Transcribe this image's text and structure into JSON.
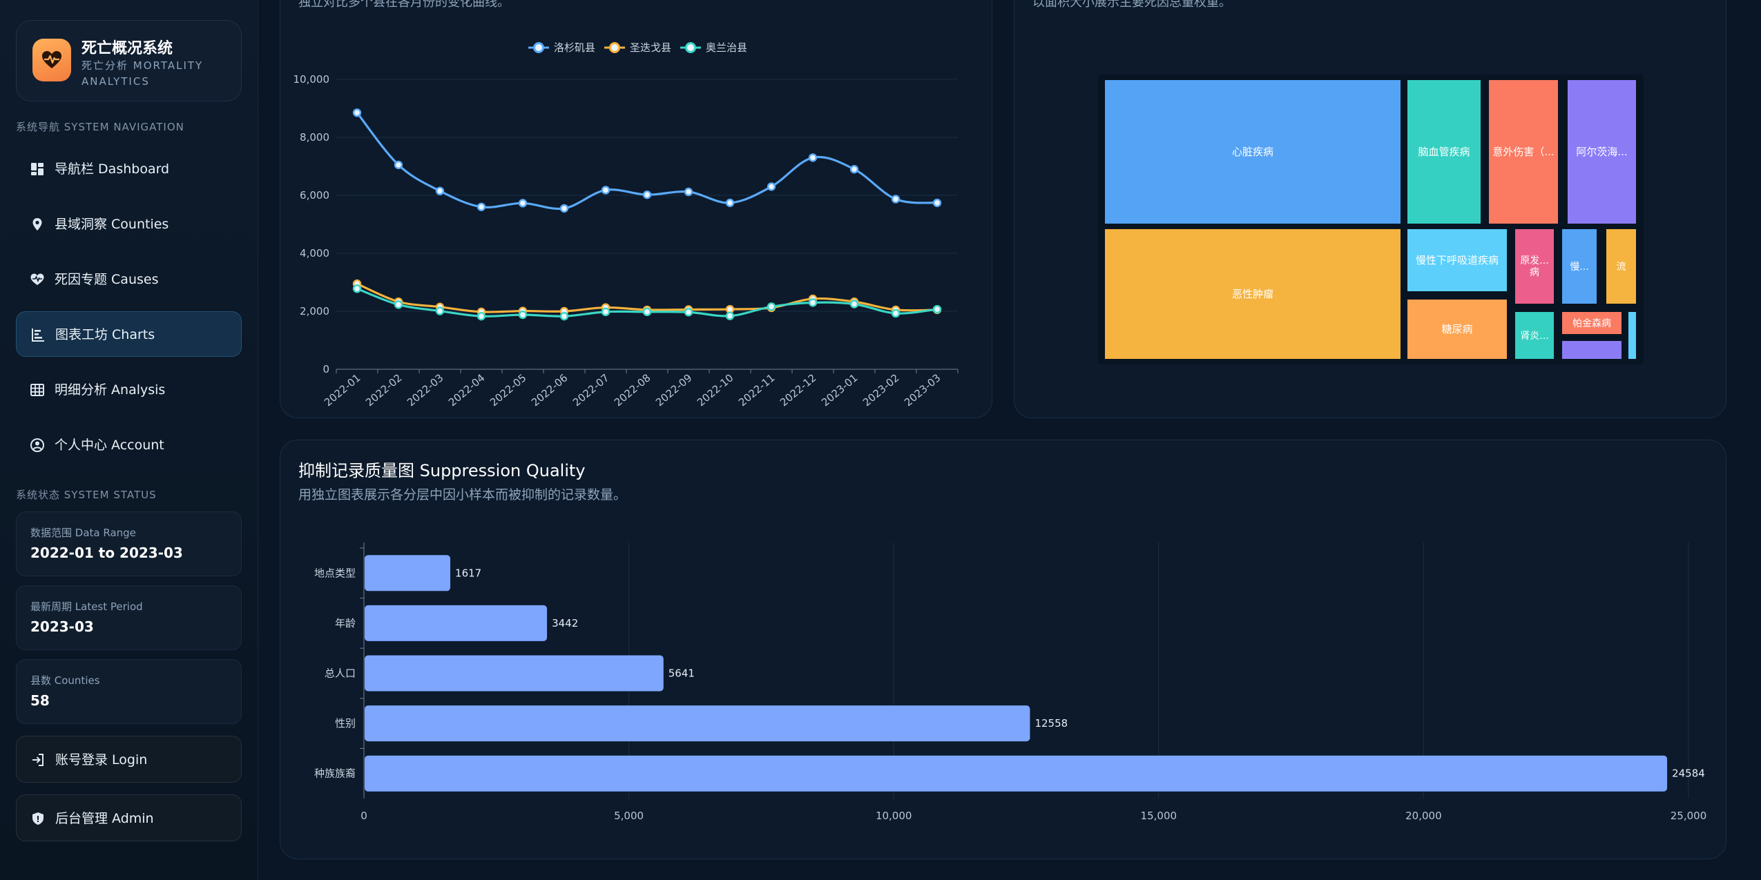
{
  "brand": {
    "title": "死亡概况系统",
    "subtitle": "死亡分析 MORTALITY ANALYTICS"
  },
  "nav": {
    "section_label": "系统导航 SYSTEM NAVIGATION",
    "items": [
      {
        "label": "导航栏 Dashboard",
        "icon": "dashboard-icon"
      },
      {
        "label": "县域洞察 Counties",
        "icon": "map-pin-icon"
      },
      {
        "label": "死因专题 Causes",
        "icon": "heart-pulse-icon"
      },
      {
        "label": "图表工坊 Charts",
        "icon": "chart-icon"
      },
      {
        "label": "明细分析 Analysis",
        "icon": "table-icon"
      },
      {
        "label": "个人中心 Account",
        "icon": "user-circle-icon"
      }
    ],
    "active_index": 3
  },
  "status": {
    "section_label": "系统状态 SYSTEM STATUS",
    "cards": [
      {
        "label": "数据范围 Data Range",
        "value": "2022-01 to 2023-03"
      },
      {
        "label": "最新周期 Latest Period",
        "value": "2023-03"
      },
      {
        "label": "县数 Counties",
        "value": "58"
      }
    ]
  },
  "actions": {
    "login_label": "账号登录 Login",
    "admin_label": "后台管理 Admin"
  },
  "line_panel": {
    "cut_subtitle": "独立对比多个县在各月份的变化曲线。"
  },
  "treemap_panel": {
    "cut_subtitle": "以面积大小展示主要死因总量权重。",
    "cells": [
      {
        "label": "心脏疾病",
        "color": "#54a3f5"
      },
      {
        "label": "恶性肿瘤",
        "color": "#f5b33f"
      },
      {
        "label": "脑血管疾病",
        "color": "#35d0c2"
      },
      {
        "label": "意外伤害（...",
        "color": "#fb7a62"
      },
      {
        "label": "阿尔茨海...",
        "color": "#8b7cf6"
      },
      {
        "label": "慢性下呼吸道疾病",
        "color": "#5ccffb"
      },
      {
        "label": "原发...病",
        "color": "#ec5f8d"
      },
      {
        "label": "慢...",
        "color": "#54a3f5"
      },
      {
        "label": "流",
        "color": "#f5b33f"
      },
      {
        "label": "糖尿病",
        "color": "#fda552"
      },
      {
        "label": "肾炎...",
        "color": "#35d0c2"
      },
      {
        "label": "帕金森病",
        "color": "#fb7a62"
      },
      {
        "label": "",
        "color": "#8b7cf6"
      },
      {
        "label": "",
        "color": "#5ccffb"
      }
    ]
  },
  "suppression_panel": {
    "title": "抑制记录质量图 Suppression Quality",
    "description": "用独立图表展示各分层中因小样本而被抑制的记录数量。"
  },
  "chart_data": [
    {
      "type": "line",
      "x": [
        "2022-01",
        "2022-02",
        "2022-03",
        "2022-04",
        "2022-05",
        "2022-06",
        "2022-07",
        "2022-08",
        "2022-09",
        "2022-10",
        "2022-11",
        "2022-12",
        "2023-01",
        "2023-02",
        "2023-03"
      ],
      "ylim": [
        0,
        10000
      ],
      "yticks": [
        "10,000",
        "8,000",
        "6,000",
        "4,000",
        "2,000",
        "0"
      ],
      "legend_position": "top",
      "grid": true,
      "series": [
        {
          "name": "洛杉矶县",
          "color": "#5aa9f8",
          "values": [
            8850,
            7050,
            6150,
            5600,
            5730,
            5550,
            6180,
            6020,
            6120,
            5740,
            6300,
            7300,
            6900,
            5870,
            5740
          ]
        },
        {
          "name": "圣迭戈县",
          "color": "#f6b23c",
          "values": [
            2950,
            2330,
            2150,
            1980,
            2010,
            2000,
            2130,
            2050,
            2060,
            2070,
            2120,
            2430,
            2330,
            2050,
            2050
          ]
        },
        {
          "name": "奥兰治县",
          "color": "#3ad6c4",
          "values": [
            2780,
            2230,
            2010,
            1830,
            1880,
            1830,
            1980,
            1980,
            1970,
            1840,
            2160,
            2300,
            2250,
            1930,
            2070
          ]
        }
      ]
    },
    {
      "type": "bar",
      "orientation": "horizontal",
      "categories": [
        "地点类型",
        "年龄",
        "总人口",
        "性别",
        "种族族裔"
      ],
      "values": [
        1617,
        3442,
        5641,
        12558,
        24584
      ],
      "xlim": [
        0,
        25000
      ],
      "xticks": [
        "0",
        "5,000",
        "10,000",
        "15,000",
        "20,000",
        "25,000"
      ],
      "color": "#7ea6ff",
      "grid": true
    }
  ]
}
